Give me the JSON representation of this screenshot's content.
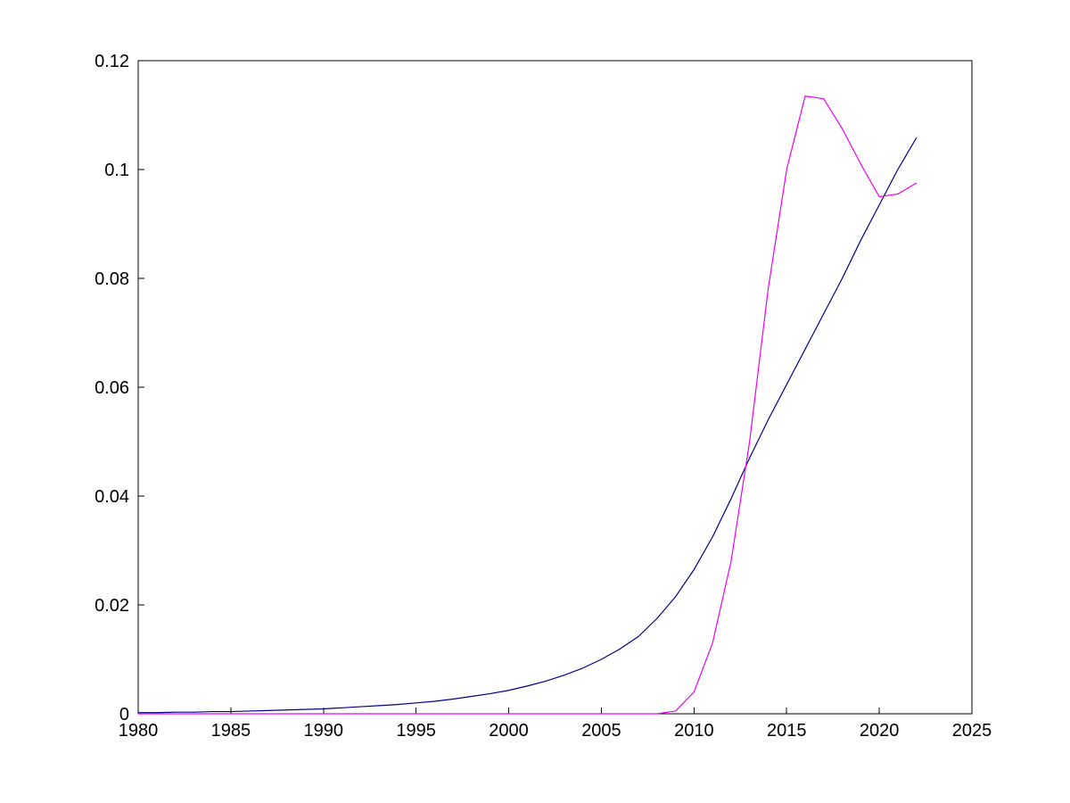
{
  "colors": {
    "background": "#FFFFFF",
    "axis": "#000000",
    "series_blue": "#00008B",
    "series_magenta": "#EE00EE"
  },
  "chart_data": {
    "type": "line",
    "title": "",
    "xlabel": "",
    "ylabel": "",
    "grid": false,
    "legend": "none",
    "xlim": [
      1980,
      2025
    ],
    "ylim": [
      0,
      0.12
    ],
    "x_ticks": [
      1980,
      1985,
      1990,
      1995,
      2000,
      2005,
      2010,
      2015,
      2020,
      2025
    ],
    "x_tick_labels": [
      "1980",
      "1985",
      "1990",
      "1995",
      "2000",
      "2005",
      "2010",
      "2015",
      "2020",
      "2025"
    ],
    "y_ticks": [
      0,
      0.02,
      0.04,
      0.06,
      0.08,
      0.1,
      0.12
    ],
    "y_tick_labels": [
      "0",
      "0.02",
      "0.04",
      "0.06",
      "0.08",
      "0.1",
      "0.12"
    ],
    "x": [
      1980,
      1981,
      1982,
      1983,
      1984,
      1985,
      1986,
      1987,
      1988,
      1989,
      1990,
      1991,
      1992,
      1993,
      1994,
      1995,
      1996,
      1997,
      1998,
      1999,
      2000,
      2001,
      2002,
      2003,
      2004,
      2005,
      2006,
      2007,
      2008,
      2009,
      2010,
      2011,
      2012,
      2013,
      2014,
      2015,
      2016,
      2017,
      2018,
      2019,
      2020,
      2021,
      2022
    ],
    "series": [
      {
        "name": "smooth-dark-blue-curve",
        "color": "#00008B",
        "values": [
          0.0002,
          0.0002,
          0.0003,
          0.0003,
          0.0004,
          0.0004,
          0.0005,
          0.0006,
          0.0007,
          0.0008,
          0.0009,
          0.0011,
          0.0013,
          0.0015,
          0.0017,
          0.002,
          0.0023,
          0.0027,
          0.0032,
          0.0037,
          0.0043,
          0.0051,
          0.006,
          0.0071,
          0.0084,
          0.01,
          0.0119,
          0.0142,
          0.0175,
          0.0215,
          0.0265,
          0.0325,
          0.0395,
          0.047,
          0.054,
          0.0605,
          0.067,
          0.0735,
          0.08,
          0.087,
          0.0935,
          0.1,
          0.1058
        ]
      },
      {
        "name": "magenta-spike-curve",
        "color": "#EE00EE",
        "values": [
          0,
          0,
          0,
          0,
          0,
          0,
          0,
          0,
          0,
          0,
          0,
          0,
          0,
          0,
          0,
          0,
          0,
          0,
          0,
          0,
          0,
          0,
          0,
          0,
          0,
          0,
          0,
          0,
          0,
          0.0005,
          0.004,
          0.013,
          0.028,
          0.05,
          0.078,
          0.1,
          0.1135,
          0.113,
          0.1075,
          0.101,
          0.095,
          0.0955,
          0.0975
        ]
      }
    ]
  }
}
